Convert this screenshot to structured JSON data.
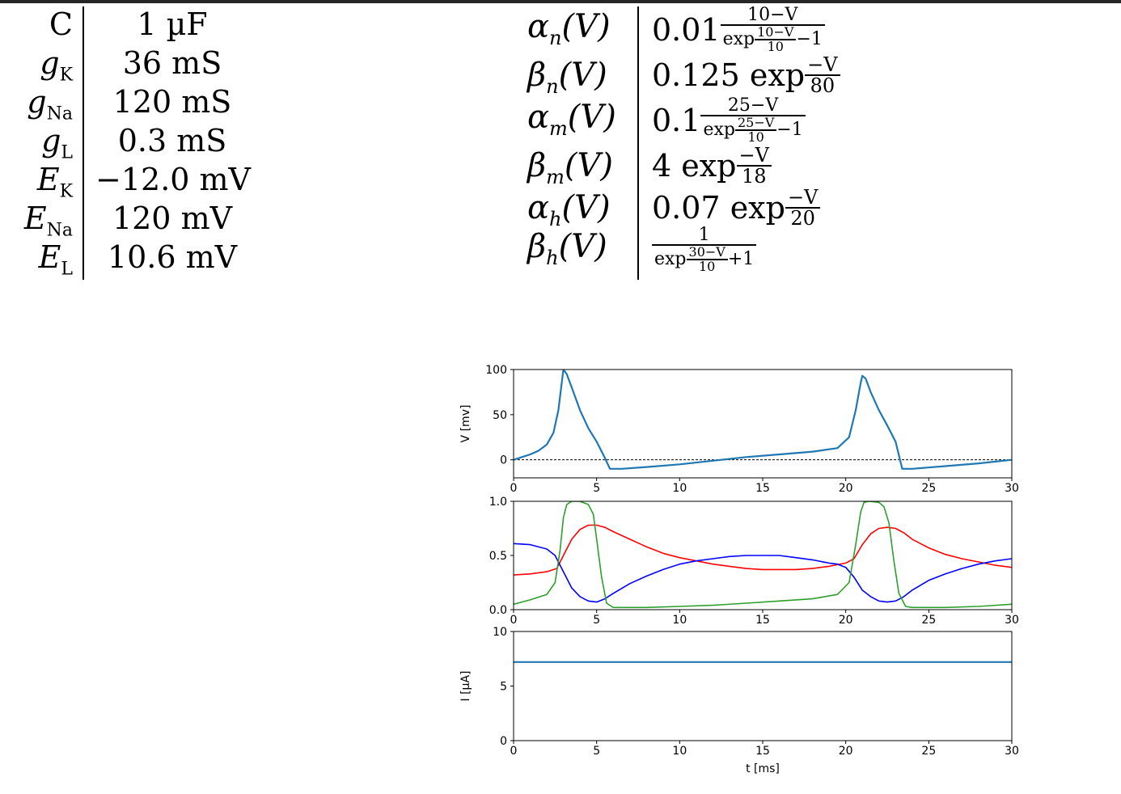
{
  "params": [
    {
      "sym": "C",
      "sub": "",
      "value": "1 µF"
    },
    {
      "sym": "g",
      "sub": "K",
      "value": "36 mS"
    },
    {
      "sym": "g",
      "sub": "Na",
      "value": "120 mS"
    },
    {
      "sym": "g",
      "sub": "L",
      "value": "0.3 mS"
    },
    {
      "sym": "E",
      "sub": "K",
      "value": "−12.0 mV"
    },
    {
      "sym": "E",
      "sub": "Na",
      "value": "120 mV"
    },
    {
      "sym": "E",
      "sub": "L",
      "value": "10.6 mV"
    }
  ],
  "rates": [
    {
      "label": "α",
      "sub": "n",
      "arg": "(V)",
      "coef": "0.01",
      "num": "10−V",
      "den_prefix": "exp",
      "den_num": "10−V",
      "den_den": "10",
      "den_suffix": "−1"
    },
    {
      "label": "β",
      "sub": "n",
      "arg": "(V)",
      "coef": "0.125 exp",
      "frac_num": "−V",
      "frac_den": "80"
    },
    {
      "label": "α",
      "sub": "m",
      "arg": "(V)",
      "coef": "0.1",
      "num": "25−V",
      "den_prefix": "exp",
      "den_num": "25−V",
      "den_den": "10",
      "den_suffix": "−1"
    },
    {
      "label": "β",
      "sub": "m",
      "arg": "(V)",
      "coef": "4 exp",
      "frac_num": "−V",
      "frac_den": "18"
    },
    {
      "label": "α",
      "sub": "h",
      "arg": "(V)",
      "coef": "0.07 exp",
      "frac_num": "−V",
      "frac_den": "20"
    },
    {
      "label": "β",
      "sub": "h",
      "arg": "(V)",
      "num": "1",
      "den_prefix": "exp",
      "den_num": "30−V",
      "den_den": "10",
      "den_suffix": "+1"
    }
  ],
  "chart_data": [
    {
      "type": "line",
      "ylabel": "V [mv]",
      "xlim": [
        0,
        30
      ],
      "ylim": [
        -20,
        100
      ],
      "xticks": [
        "0",
        "5",
        "10",
        "15",
        "20",
        "25",
        "30"
      ],
      "yticks": [
        "0",
        "50",
        "100"
      ],
      "reference_line": {
        "y": 0,
        "style": "dashed",
        "color": "#000000"
      },
      "series": [
        {
          "color": "#1f77b4",
          "x": [
            0,
            0.5,
            1,
            1.5,
            2,
            2.4,
            2.7,
            2.9,
            3.0,
            3.2,
            3.5,
            4,
            4.5,
            5,
            5.5,
            5.8,
            6.5,
            8,
            10,
            12,
            14,
            16,
            18,
            19.5,
            20.2,
            20.6,
            20.9,
            21.0,
            21.2,
            21.5,
            22,
            22.5,
            23,
            23.4,
            24,
            26,
            28,
            30
          ],
          "y": [
            0,
            3,
            6,
            10,
            17,
            30,
            55,
            85,
            100,
            95,
            80,
            55,
            35,
            20,
            2,
            -10,
            -10,
            -8,
            -5,
            -1,
            3,
            6,
            9,
            13,
            25,
            55,
            85,
            93,
            90,
            75,
            55,
            38,
            20,
            -10,
            -10,
            -7,
            -4,
            0
          ]
        }
      ]
    },
    {
      "type": "line",
      "xlim": [
        0,
        30
      ],
      "ylim": [
        0,
        1
      ],
      "xticks": [
        "0",
        "5",
        "10",
        "15",
        "20",
        "25",
        "30"
      ],
      "yticks": [
        "0.0",
        "0.5",
        "1.0"
      ],
      "series": [
        {
          "color": "#ff0000",
          "x": [
            0,
            1,
            2,
            2.6,
            3,
            3.5,
            4,
            4.5,
            5,
            5.5,
            6,
            7,
            8,
            9,
            10,
            11,
            12,
            13,
            14,
            15,
            16,
            17,
            18,
            19,
            20,
            20.5,
            21,
            21.5,
            22,
            22.5,
            23,
            23.5,
            24,
            25,
            26,
            27,
            28,
            29,
            30
          ],
          "y": [
            0.32,
            0.33,
            0.35,
            0.38,
            0.5,
            0.65,
            0.74,
            0.78,
            0.78,
            0.76,
            0.72,
            0.65,
            0.58,
            0.52,
            0.48,
            0.45,
            0.42,
            0.4,
            0.38,
            0.37,
            0.37,
            0.37,
            0.38,
            0.4,
            0.43,
            0.47,
            0.6,
            0.7,
            0.75,
            0.76,
            0.75,
            0.71,
            0.65,
            0.57,
            0.51,
            0.47,
            0.44,
            0.41,
            0.39
          ]
        },
        {
          "color": "#0000ff",
          "x": [
            0,
            1,
            2,
            2.5,
            3,
            3.5,
            4,
            4.5,
            5,
            5.5,
            6,
            7,
            8,
            9,
            10,
            11,
            12,
            13,
            14,
            15,
            16,
            17,
            18,
            19,
            19.5,
            20,
            20.5,
            21,
            21.5,
            22,
            22.5,
            23,
            23.5,
            24,
            25,
            26,
            27,
            28,
            29,
            30
          ],
          "y": [
            0.61,
            0.6,
            0.56,
            0.5,
            0.35,
            0.2,
            0.12,
            0.08,
            0.07,
            0.1,
            0.15,
            0.24,
            0.31,
            0.37,
            0.42,
            0.45,
            0.47,
            0.49,
            0.5,
            0.5,
            0.5,
            0.48,
            0.46,
            0.43,
            0.42,
            0.39,
            0.3,
            0.18,
            0.12,
            0.08,
            0.07,
            0.08,
            0.12,
            0.18,
            0.27,
            0.33,
            0.38,
            0.42,
            0.45,
            0.47
          ]
        },
        {
          "color": "#2ca02c",
          "x": [
            0,
            1,
            2,
            2.5,
            2.8,
            3.0,
            3.2,
            3.5,
            4,
            4.5,
            4.8,
            5.0,
            5.3,
            5.6,
            6,
            8,
            10,
            12,
            14,
            16,
            18,
            19.5,
            20.2,
            20.6,
            20.9,
            21.1,
            21.4,
            22,
            22.3,
            22.6,
            22.9,
            23.2,
            23.6,
            24,
            26,
            28,
            30
          ],
          "y": [
            0.05,
            0.09,
            0.14,
            0.25,
            0.55,
            0.85,
            0.97,
            1.0,
            1.0,
            0.97,
            0.88,
            0.65,
            0.3,
            0.06,
            0.02,
            0.02,
            0.03,
            0.04,
            0.06,
            0.08,
            0.1,
            0.14,
            0.25,
            0.6,
            0.9,
            0.99,
            1.0,
            0.99,
            0.95,
            0.8,
            0.45,
            0.15,
            0.03,
            0.02,
            0.02,
            0.03,
            0.05
          ]
        }
      ]
    },
    {
      "type": "line",
      "xlabel": "t [ms]",
      "ylabel": "I [µA]",
      "xlim": [
        0,
        30
      ],
      "ylim": [
        0,
        10
      ],
      "xticks": [
        "0",
        "5",
        "10",
        "15",
        "20",
        "25",
        "30"
      ],
      "yticks": [
        "0",
        "5",
        "10"
      ],
      "series": [
        {
          "color": "#1f77b4",
          "x": [
            0,
            30
          ],
          "y": [
            7.2,
            7.2
          ]
        }
      ]
    }
  ]
}
